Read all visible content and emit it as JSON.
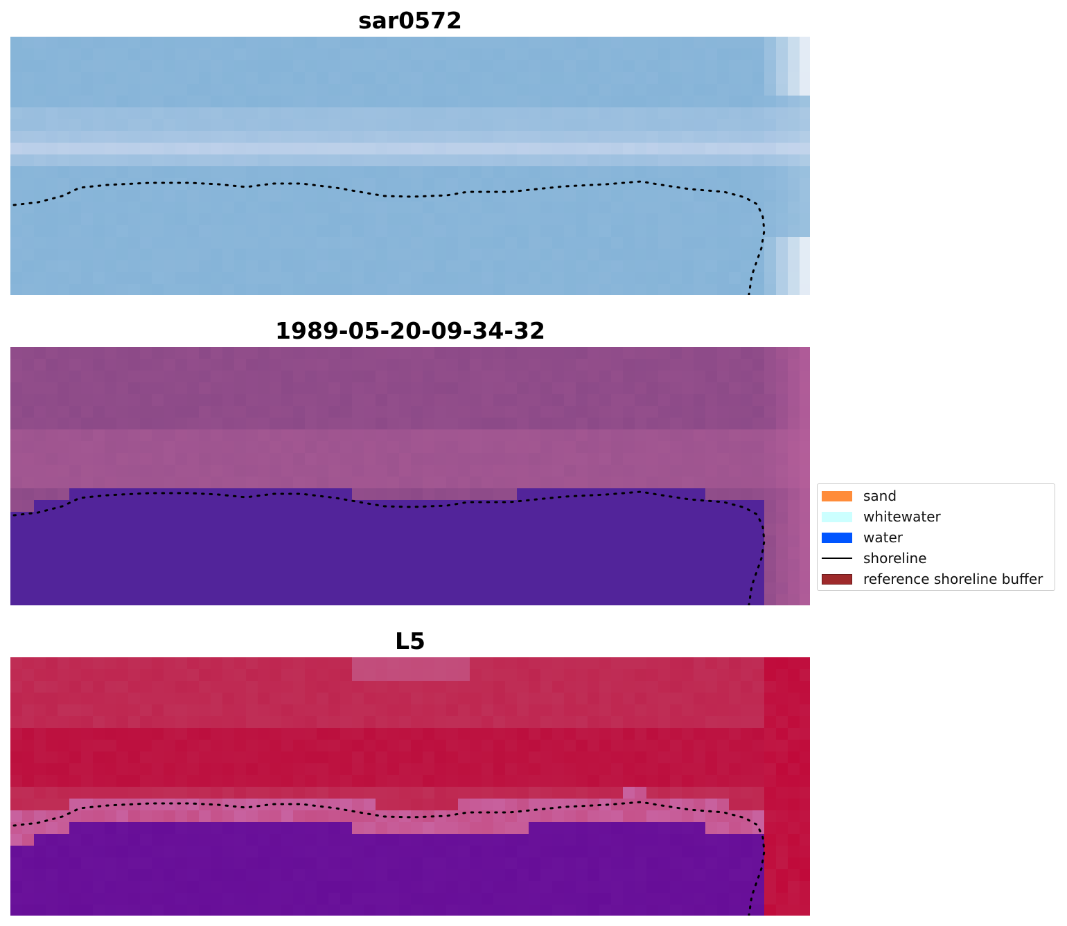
{
  "panels": [
    {
      "title": "sar0572",
      "style": "sar"
    },
    {
      "title": "1989-05-20-09-34-32",
      "style": "classified"
    },
    {
      "title": "L5",
      "style": "index"
    }
  ],
  "legend": {
    "items": [
      {
        "label": "sand",
        "color": "#ff8c3a",
        "kind": "patch"
      },
      {
        "label": "whitewater",
        "color": "#ccffff",
        "kind": "patch"
      },
      {
        "label": "water",
        "color": "#0055ff",
        "kind": "patch"
      },
      {
        "label": "shoreline",
        "color": "#000000",
        "kind": "line"
      },
      {
        "label": "reference shoreline buffer",
        "color": "#9e2a2b",
        "kind": "patch"
      }
    ]
  },
  "colors": {
    "sar_water": "#86b4d8",
    "sar_band": "#c4d4ec",
    "sar_land": "#eef2f8",
    "class_top": "#8c4a88",
    "class_band": "#a85a94",
    "class_water": "#52249a",
    "class_edge": "#b8609c",
    "index_top": "#c0385e",
    "index_mid": "#bc0a3a",
    "index_buffer": "#c862a0",
    "index_water": "#6a129a",
    "index_edge": "#c00a3a",
    "shoreline": "#000000"
  }
}
